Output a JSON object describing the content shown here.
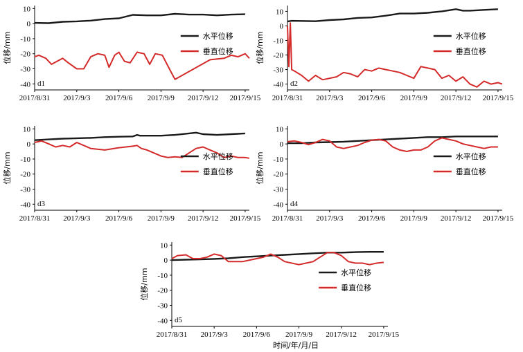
{
  "figure": {
    "ylabel": "位移/mm",
    "xlabel": "时间/年/月/日",
    "x_ticks": [
      "2017/8/31",
      "2017/9/3",
      "2017/9/6",
      "2017/9/9",
      "2017/9/12",
      "2017/9/15"
    ],
    "y_ticks": [
      "10",
      "0",
      "-10",
      "-20",
      "-30",
      "-40"
    ],
    "legend": [
      "水平位移",
      "垂直位移"
    ],
    "colors": {
      "horizontal": "#1a1a1a",
      "vertical": "#d42a2a"
    }
  },
  "chart_data": [
    {
      "type": "line",
      "panel": "d1",
      "x_unit": "days since 2017/8/31",
      "ylim": [
        -44,
        12
      ],
      "xlim": [
        0,
        15.3
      ],
      "series": [
        {
          "name": "水平位移",
          "color": "#1a1a1a",
          "points": [
            [
              0,
              0.5
            ],
            [
              1,
              0.3
            ],
            [
              2,
              1.2
            ],
            [
              3,
              1.5
            ],
            [
              4,
              2
            ],
            [
              5,
              3
            ],
            [
              6,
              3.5
            ],
            [
              7,
              5.8
            ],
            [
              8,
              5.5
            ],
            [
              9,
              5.5
            ],
            [
              10,
              6.5
            ],
            [
              11,
              6
            ],
            [
              12,
              6
            ],
            [
              13,
              5.5
            ],
            [
              14,
              6
            ],
            [
              15,
              6.2
            ]
          ]
        },
        {
          "name": "垂直位移",
          "color": "#d42a2a",
          "points": [
            [
              0,
              -22
            ],
            [
              0.3,
              -21
            ],
            [
              0.8,
              -23
            ],
            [
              1.2,
              -27
            ],
            [
              1.6,
              -25
            ],
            [
              2,
              -23
            ],
            [
              2.4,
              -26
            ],
            [
              3,
              -30
            ],
            [
              3.5,
              -30
            ],
            [
              4,
              -22
            ],
            [
              4.5,
              -20
            ],
            [
              5,
              -21
            ],
            [
              5.3,
              -29
            ],
            [
              5.7,
              -21
            ],
            [
              6,
              -19
            ],
            [
              6.4,
              -25
            ],
            [
              6.8,
              -26
            ],
            [
              7.3,
              -19
            ],
            [
              7.8,
              -20
            ],
            [
              8.2,
              -27
            ],
            [
              8.6,
              -20
            ],
            [
              9.1,
              -21
            ],
            [
              9.6,
              -30
            ],
            [
              10,
              -37
            ],
            [
              12.5,
              -24
            ],
            [
              13.5,
              -23
            ],
            [
              14,
              -21
            ],
            [
              14.5,
              -22
            ],
            [
              15,
              -20
            ],
            [
              15.3,
              -23
            ]
          ]
        }
      ]
    },
    {
      "type": "line",
      "panel": "d2",
      "x_unit": "days since 2017/8/31",
      "ylim": [
        -44,
        14
      ],
      "xlim": [
        0,
        15.3
      ],
      "series": [
        {
          "name": "水平位移",
          "color": "#1a1a1a",
          "points": [
            [
              0,
              3
            ],
            [
              0.3,
              3.5
            ],
            [
              2,
              3.2
            ],
            [
              3,
              4
            ],
            [
              4,
              4.5
            ],
            [
              5,
              5.5
            ],
            [
              6,
              5.8
            ],
            [
              7,
              7
            ],
            [
              8,
              8.5
            ],
            [
              9,
              8.5
            ],
            [
              10,
              9
            ],
            [
              11,
              10
            ],
            [
              12,
              11.5
            ],
            [
              12.5,
              10.5
            ],
            [
              13,
              10.5
            ],
            [
              14,
              11
            ],
            [
              15,
              11.5
            ]
          ]
        },
        {
          "name": "垂直位移",
          "color": "#d42a2a",
          "points": [
            [
              0,
              0
            ],
            [
              0.1,
              -28
            ],
            [
              0.2,
              2
            ],
            [
              0.3,
              -30
            ],
            [
              0.5,
              -31
            ],
            [
              1,
              -34
            ],
            [
              1.5,
              -38
            ],
            [
              2,
              -34
            ],
            [
              2.5,
              -37
            ],
            [
              3,
              -36
            ],
            [
              3.5,
              -35
            ],
            [
              4,
              -32
            ],
            [
              4.5,
              -33
            ],
            [
              5,
              -35
            ],
            [
              5.5,
              -30
            ],
            [
              6,
              -31
            ],
            [
              6.5,
              -29
            ],
            [
              7,
              -30
            ],
            [
              7.5,
              -31
            ],
            [
              8,
              -32
            ],
            [
              8.5,
              -34
            ],
            [
              9,
              -36
            ],
            [
              9.5,
              -28
            ],
            [
              10,
              -29
            ],
            [
              10.5,
              -30
            ],
            [
              11,
              -36
            ],
            [
              11.5,
              -34
            ],
            [
              12,
              -38
            ],
            [
              12.5,
              -35
            ],
            [
              13,
              -40
            ],
            [
              13.5,
              -42
            ],
            [
              14,
              -38
            ],
            [
              14.5,
              -40
            ],
            [
              15,
              -39
            ],
            [
              15.3,
              -40
            ]
          ]
        }
      ]
    },
    {
      "type": "line",
      "panel": "d3",
      "x_unit": "days since 2017/8/31",
      "ylim": [
        -44,
        12
      ],
      "xlim": [
        0,
        15.3
      ],
      "series": [
        {
          "name": "水平位移",
          "color": "#1a1a1a",
          "points": [
            [
              0,
              2.5
            ],
            [
              1,
              3
            ],
            [
              2,
              3.5
            ],
            [
              3,
              3.8
            ],
            [
              4,
              4
            ],
            [
              5,
              4.5
            ],
            [
              6,
              4.8
            ],
            [
              7,
              5
            ],
            [
              7.3,
              6
            ],
            [
              7.5,
              5.5
            ],
            [
              8,
              5.5
            ],
            [
              9,
              5.5
            ],
            [
              10,
              6
            ],
            [
              11,
              7
            ],
            [
              11.5,
              7.5
            ],
            [
              12,
              6.5
            ],
            [
              13,
              6
            ],
            [
              14,
              6.5
            ],
            [
              15,
              7
            ]
          ]
        },
        {
          "name": "垂直位移",
          "color": "#d42a2a",
          "points": [
            [
              0,
              1
            ],
            [
              0.5,
              2
            ],
            [
              1,
              0
            ],
            [
              1.5,
              -2
            ],
            [
              2,
              -1
            ],
            [
              2.5,
              -2
            ],
            [
              3,
              1
            ],
            [
              3.5,
              -1
            ],
            [
              4,
              -3
            ],
            [
              5,
              -4
            ],
            [
              6,
              -2.5
            ],
            [
              7,
              -1.5
            ],
            [
              7.3,
              -1
            ],
            [
              7.6,
              -3
            ],
            [
              8,
              -4
            ],
            [
              8.5,
              -6
            ],
            [
              9,
              -8
            ],
            [
              9.5,
              -9
            ],
            [
              10,
              -8.5
            ],
            [
              10.5,
              -9
            ],
            [
              11,
              -6
            ],
            [
              11.5,
              -3
            ],
            [
              12,
              -2
            ],
            [
              12.5,
              -4
            ],
            [
              13,
              -6
            ],
            [
              13.5,
              -9
            ],
            [
              14,
              -8
            ],
            [
              14.5,
              -9
            ],
            [
              15,
              -9
            ],
            [
              15.3,
              -9.5
            ]
          ]
        }
      ]
    },
    {
      "type": "line",
      "panel": "d4",
      "x_unit": "days since 2017/8/31",
      "ylim": [
        -44,
        12
      ],
      "xlim": [
        0,
        15.3
      ],
      "series": [
        {
          "name": "水平位移",
          "color": "#1a1a1a",
          "points": [
            [
              0,
              0.5
            ],
            [
              1,
              0.5
            ],
            [
              2,
              1
            ],
            [
              3,
              1.2
            ],
            [
              4,
              1.5
            ],
            [
              5,
              2
            ],
            [
              6,
              2.5
            ],
            [
              7,
              3
            ],
            [
              8,
              3.5
            ],
            [
              9,
              4
            ],
            [
              10,
              4.5
            ],
            [
              11,
              4.5
            ],
            [
              12,
              5
            ],
            [
              13,
              5
            ],
            [
              14,
              5
            ],
            [
              15,
              5
            ]
          ]
        },
        {
          "name": "垂直位移",
          "color": "#d42a2a",
          "points": [
            [
              0,
              1.5
            ],
            [
              0.5,
              2
            ],
            [
              1,
              1
            ],
            [
              1.5,
              -0.5
            ],
            [
              2,
              1
            ],
            [
              2.5,
              3
            ],
            [
              3,
              2
            ],
            [
              3.5,
              -2
            ],
            [
              4,
              -3
            ],
            [
              4.5,
              -2
            ],
            [
              5,
              -1
            ],
            [
              5.5,
              1
            ],
            [
              6,
              2.5
            ],
            [
              6.5,
              3
            ],
            [
              7,
              2
            ],
            [
              7.5,
              -2
            ],
            [
              8,
              -4
            ],
            [
              8.5,
              -5
            ],
            [
              9,
              -4
            ],
            [
              9.5,
              -4
            ],
            [
              10,
              -2
            ],
            [
              10.5,
              2
            ],
            [
              11,
              4
            ],
            [
              11.5,
              3
            ],
            [
              12,
              2
            ],
            [
              12.5,
              0
            ],
            [
              13,
              -1
            ],
            [
              13.5,
              -2
            ],
            [
              14,
              -3
            ],
            [
              14.5,
              -2
            ],
            [
              15,
              -2
            ]
          ]
        }
      ]
    },
    {
      "type": "line",
      "panel": "d5",
      "x_unit": "days since 2017/8/31",
      "ylim": [
        -44,
        12
      ],
      "xlim": [
        0,
        15.3
      ],
      "series": [
        {
          "name": "水平位移",
          "color": "#1a1a1a",
          "points": [
            [
              0,
              0
            ],
            [
              1,
              0.3
            ],
            [
              2,
              0.5
            ],
            [
              3,
              0.8
            ],
            [
              4,
              1.2
            ],
            [
              5,
              2
            ],
            [
              6,
              2.5
            ],
            [
              7,
              3
            ],
            [
              8,
              3.5
            ],
            [
              9,
              4
            ],
            [
              10,
              4.5
            ],
            [
              11,
              5
            ],
            [
              12,
              5
            ],
            [
              13,
              5.3
            ],
            [
              14,
              5.5
            ],
            [
              15,
              5.5
            ]
          ]
        },
        {
          "name": "垂直位移",
          "color": "#d42a2a",
          "points": [
            [
              0,
              1
            ],
            [
              0.4,
              3
            ],
            [
              1,
              3.5
            ],
            [
              1.5,
              1
            ],
            [
              2,
              1
            ],
            [
              2.5,
              2
            ],
            [
              3,
              4
            ],
            [
              3.5,
              3
            ],
            [
              4,
              -1
            ],
            [
              5,
              -1
            ],
            [
              6,
              1
            ],
            [
              6.5,
              2
            ],
            [
              7,
              4
            ],
            [
              7.5,
              2
            ],
            [
              8,
              -1
            ],
            [
              9,
              -3
            ],
            [
              9.5,
              -2
            ],
            [
              10,
              -1
            ],
            [
              10.5,
              2
            ],
            [
              11,
              5
            ],
            [
              11.5,
              5
            ],
            [
              12,
              3
            ],
            [
              12.5,
              -1
            ],
            [
              13,
              -2
            ],
            [
              13.5,
              -2
            ],
            [
              14,
              -3
            ],
            [
              14.5,
              -2
            ],
            [
              15,
              -1.5
            ]
          ]
        }
      ]
    }
  ]
}
